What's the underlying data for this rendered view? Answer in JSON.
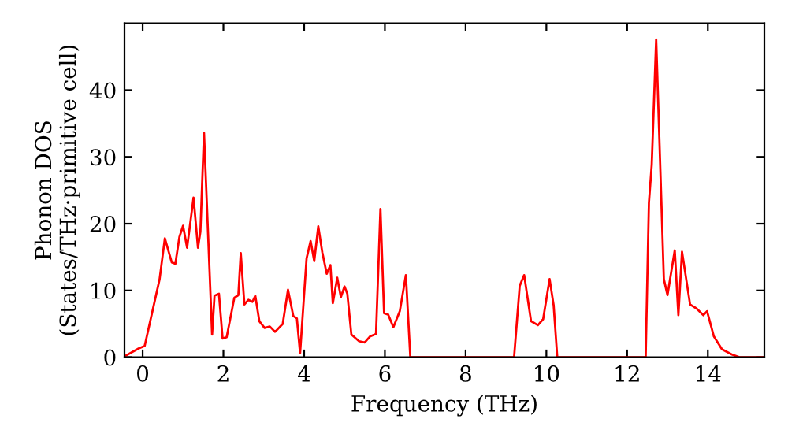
{
  "chart_data": {
    "type": "line",
    "xlabel": "Frequency (THz)",
    "ylabel": "Phonon DOS\n(States/THz·primitive cell)",
    "xlim": [
      -0.45,
      15.4
    ],
    "ylim": [
      0,
      50
    ],
    "xticks": [
      0,
      2,
      4,
      6,
      8,
      10,
      12,
      14
    ],
    "yticks": [
      0,
      10,
      20,
      30,
      40
    ],
    "grid": false,
    "legend": false,
    "marker": "none",
    "line_style": "solid",
    "series": [
      {
        "color": "#ff0000",
        "x": [
          -0.43,
          -0.1,
          0.05,
          0.42,
          0.55,
          0.72,
          0.81,
          0.91,
          1.0,
          1.1,
          1.26,
          1.37,
          1.43,
          1.52,
          1.72,
          1.78,
          1.89,
          1.98,
          2.08,
          2.27,
          2.37,
          2.43,
          2.52,
          2.62,
          2.72,
          2.79,
          2.89,
          3.02,
          3.15,
          3.28,
          3.47,
          3.6,
          3.73,
          3.82,
          3.9,
          4.06,
          4.16,
          4.25,
          4.35,
          4.45,
          4.56,
          4.65,
          4.71,
          4.82,
          4.91,
          5.0,
          5.07,
          5.17,
          5.36,
          5.5,
          5.63,
          5.78,
          5.89,
          5.98,
          6.08,
          6.21,
          6.37,
          6.52,
          6.63,
          9.2,
          9.34,
          9.45,
          9.62,
          9.79,
          9.92,
          10.08,
          10.18,
          10.27,
          12.46,
          12.54,
          12.61,
          12.72,
          12.91,
          13.0,
          13.18,
          13.27,
          13.36,
          13.56,
          13.72,
          13.89,
          13.98,
          14.15,
          14.35,
          14.6,
          14.78,
          15.38
        ],
        "values": [
          0.2,
          1.3,
          1.7,
          11.7,
          17.8,
          14.2,
          14.0,
          18.0,
          19.7,
          16.4,
          23.9,
          16.4,
          18.8,
          33.6,
          3.4,
          9.2,
          9.5,
          2.8,
          3.0,
          8.9,
          9.3,
          15.6,
          7.9,
          8.6,
          8.3,
          9.2,
          5.4,
          4.4,
          4.6,
          3.8,
          5.0,
          10.1,
          6.2,
          5.8,
          0.6,
          14.8,
          17.4,
          14.4,
          19.6,
          15.7,
          12.5,
          13.8,
          8.1,
          11.9,
          9.0,
          10.6,
          9.5,
          3.4,
          2.4,
          2.2,
          3.1,
          3.5,
          22.2,
          6.6,
          6.4,
          4.5,
          6.9,
          12.3,
          0,
          0,
          10.7,
          12.3,
          5.4,
          4.8,
          5.7,
          11.7,
          7.8,
          0,
          0,
          23.1,
          28.8,
          47.6,
          11.7,
          9.3,
          16.0,
          6.3,
          15.8,
          7.9,
          7.3,
          6.3,
          6.9,
          3.1,
          1.2,
          0.4,
          0,
          0
        ]
      }
    ]
  }
}
